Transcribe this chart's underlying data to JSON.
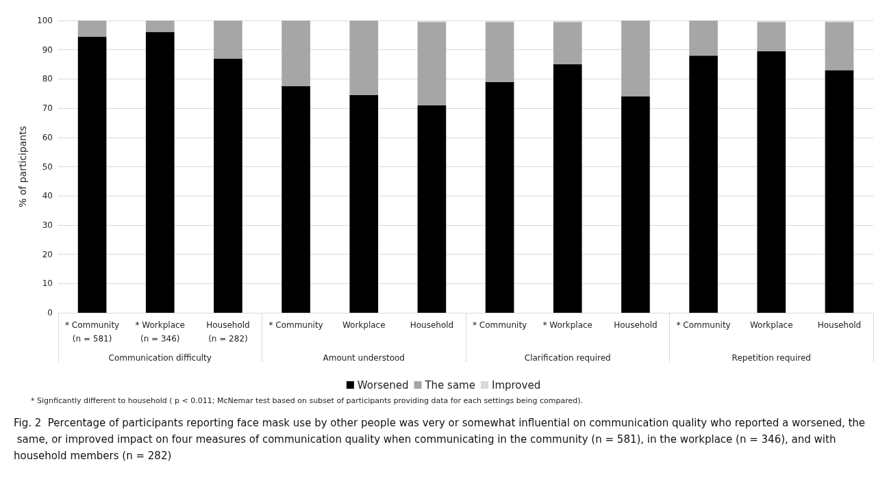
{
  "chart_data": {
    "type": "bar",
    "stacked": true,
    "title": "Fig. 2  Percentage of participants reporting face mask use by other people was very or somewhat influential on communication quality who reported a worsened, the same, or improved impact on four measures of communication quality when communicating in the community (n = 581), in the workplace (n = 346), and with household members (n = 282)",
    "ylabel": "% of participants",
    "categories": [
      "* Community\n(n = 581)",
      "* Workplace\n(n = 346)",
      "Household\n(n = 282)",
      "* Community",
      "Workplace",
      "Household",
      "* Community",
      "* Workplace",
      "Household",
      "* Community",
      "Workplace",
      "Household"
    ],
    "series": [
      {
        "name": "Worsened",
        "color": "#000000",
        "values": [
          94.5,
          96,
          87,
          77.5,
          74.5,
          71,
          79,
          85,
          74,
          88,
          89.5,
          83
        ]
      },
      {
        "name": "The same",
        "color": "#a6a6a6",
        "values": [
          5.5,
          4,
          13,
          22.5,
          25.5,
          28.5,
          20.5,
          14.5,
          26,
          12,
          10,
          16.5
        ]
      },
      {
        "name": "Improved",
        "color": "#d9d9d9",
        "values": [
          0,
          0,
          0,
          0,
          0,
          0.5,
          0.5,
          0.5,
          0,
          0,
          0.5,
          0.5
        ]
      }
    ],
    "annotations": [
      "Communication difficulty",
      "Amount understood",
      "Clarification required",
      "Repetition required",
      "* Signficantly different to household ( p < 0.011; McNemar test based on subset of participants providing data for each settings being compared)."
    ],
    "ylim": [
      0,
      100
    ],
    "yticks": [
      0,
      10,
      20,
      30,
      40,
      50,
      60,
      70,
      80,
      90,
      100
    ],
    "grid": "y",
    "legend": "bottom"
  }
}
